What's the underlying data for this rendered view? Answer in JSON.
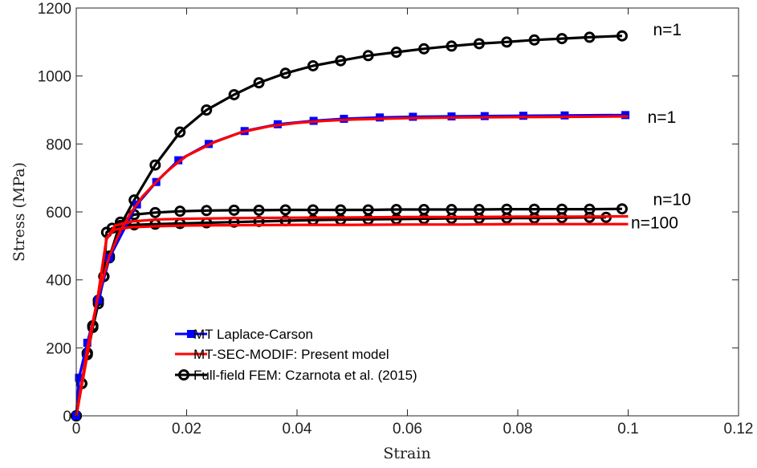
{
  "chart_data": {
    "type": "line",
    "title": "",
    "xlabel": "Strain",
    "ylabel": "Stress (MPa)",
    "xlim": [
      0,
      0.12
    ],
    "ylim": [
      0,
      1200
    ],
    "xticks": [
      0,
      0.02,
      0.04,
      0.06,
      0.08,
      0.1,
      0.12
    ],
    "xtick_labels": [
      "0",
      "0.02",
      "0.04",
      "0.06",
      "0.08",
      "0.1",
      "0.12"
    ],
    "yticks": [
      0,
      200,
      400,
      600,
      800,
      1000,
      1200
    ],
    "ytick_labels": [
      "0",
      "200",
      "400",
      "600",
      "800",
      "1000",
      "1200"
    ],
    "grid": false,
    "legend_position": "bottom-left",
    "legend": [
      {
        "label": "MT Laplace-Carson",
        "color": "#0000ff",
        "marker": "square"
      },
      {
        "label": "MT-SEC-MODIF: Present model",
        "color": "#ff0000",
        "marker": "none"
      },
      {
        "label": "Full-field FEM: Czarnota et al. (2015)",
        "color": "#000000",
        "marker": "circle"
      }
    ],
    "annotations": [
      {
        "text": "n=1",
        "x": 0.1045,
        "y": 1120
      },
      {
        "text": "n=1",
        "x": 0.1035,
        "y": 862
      },
      {
        "text": "n=10",
        "x": 0.1045,
        "y": 620
      },
      {
        "text": "n=100",
        "x": 0.1005,
        "y": 552
      }
    ],
    "series": [
      {
        "group": "full-field-fem",
        "n": "1",
        "color": "#000000",
        "marker": "circle",
        "x": [
          0,
          0.001,
          0.002,
          0.003,
          0.004,
          0.005,
          0.006,
          0.008,
          0.0105,
          0.0143,
          0.0188,
          0.0236,
          0.0286,
          0.0331,
          0.0379,
          0.0429,
          0.0479,
          0.0529,
          0.058,
          0.063,
          0.068,
          0.073,
          0.078,
          0.083,
          0.088,
          0.093,
          0.0989
        ],
        "values": [
          0,
          95,
          185,
          265,
          340,
          410,
          470,
          560,
          635,
          738,
          835,
          900,
          945,
          980,
          1008,
          1030,
          1045,
          1060,
          1070,
          1080,
          1088,
          1095,
          1100,
          1106,
          1110,
          1114,
          1118
        ]
      },
      {
        "group": "full-field-fem",
        "n": "10",
        "color": "#000000",
        "marker": "circle",
        "x": [
          0,
          0.001,
          0.002,
          0.003,
          0.004,
          0.005,
          0.006,
          0.008,
          0.0105,
          0.0143,
          0.0188,
          0.0236,
          0.0286,
          0.0331,
          0.0379,
          0.0429,
          0.0479,
          0.0529,
          0.058,
          0.063,
          0.068,
          0.073,
          0.078,
          0.083,
          0.088,
          0.093,
          0.0989
        ],
        "values": [
          0,
          95,
          185,
          265,
          340,
          410,
          465,
          570,
          592,
          598,
          602,
          604,
          605,
          605,
          606,
          606,
          606,
          606,
          607,
          607,
          607,
          607,
          608,
          608,
          608,
          608,
          609
        ]
      },
      {
        "group": "full-field-fem",
        "n": "100",
        "color": "#000000",
        "marker": "circle",
        "x": [
          0,
          0.001,
          0.002,
          0.003,
          0.004,
          0.005,
          0.0055,
          0.0065,
          0.008,
          0.0105,
          0.0143,
          0.0188,
          0.0236,
          0.0286,
          0.0331,
          0.0379,
          0.0429,
          0.0479,
          0.0529,
          0.058,
          0.063,
          0.068,
          0.073,
          0.078,
          0.083,
          0.088,
          0.093,
          0.096
        ],
        "values": [
          0,
          95,
          180,
          260,
          330,
          410,
          540,
          552,
          558,
          562,
          564,
          566,
          568,
          570,
          572,
          574,
          576,
          577,
          578,
          579,
          580,
          581,
          581,
          582,
          582,
          583,
          584,
          584
        ]
      },
      {
        "group": "mt-laplace-carson",
        "n": "1",
        "color": "#0000ff",
        "marker": "square",
        "x": [
          0,
          0.0005,
          0.002,
          0.004,
          0.006,
          0.011,
          0.0145,
          0.0185,
          0.024,
          0.0305,
          0.0365,
          0.043,
          0.0485,
          0.055,
          0.061,
          0.068,
          0.074,
          0.081,
          0.0885,
          0.0995
        ],
        "values": [
          0,
          112,
          215,
          340,
          465,
          622,
          688,
          752,
          800,
          838,
          858,
          868,
          874,
          878,
          880,
          881,
          882,
          883,
          884,
          885
        ]
      },
      {
        "group": "mt-sec-modif",
        "n": "1",
        "color": "#ff0000",
        "marker": "none",
        "x": [
          0,
          0.002,
          0.004,
          0.006,
          0.008,
          0.01,
          0.012,
          0.014,
          0.016,
          0.018,
          0.02,
          0.025,
          0.03,
          0.035,
          0.04,
          0.045,
          0.05,
          0.06,
          0.07,
          0.08,
          0.09,
          0.1
        ],
        "values": [
          0,
          200,
          355,
          470,
          545,
          600,
          645,
          680,
          713,
          740,
          765,
          805,
          835,
          852,
          862,
          868,
          872,
          876,
          878,
          879,
          880,
          881
        ]
      },
      {
        "group": "mt-sec-modif",
        "n": "10",
        "color": "#ff0000",
        "marker": "none",
        "x": [
          0,
          0.002,
          0.004,
          0.0055,
          0.007,
          0.01,
          0.015,
          0.02,
          0.03,
          0.04,
          0.05,
          0.06,
          0.07,
          0.08,
          0.09,
          0.1
        ],
        "values": [
          0,
          180,
          360,
          520,
          560,
          572,
          578,
          580,
          582,
          583,
          584,
          585,
          585,
          586,
          586,
          587
        ]
      },
      {
        "group": "mt-sec-modif",
        "n": "100",
        "color": "#ff0000",
        "marker": "none",
        "x": [
          0,
          0.002,
          0.004,
          0.0055,
          0.007,
          0.01,
          0.015,
          0.02,
          0.03,
          0.04,
          0.05,
          0.06,
          0.07,
          0.08,
          0.09,
          0.1
        ],
        "values": [
          0,
          180,
          360,
          525,
          548,
          555,
          558,
          560,
          561,
          562,
          562,
          563,
          563,
          564,
          564,
          564
        ]
      }
    ]
  }
}
